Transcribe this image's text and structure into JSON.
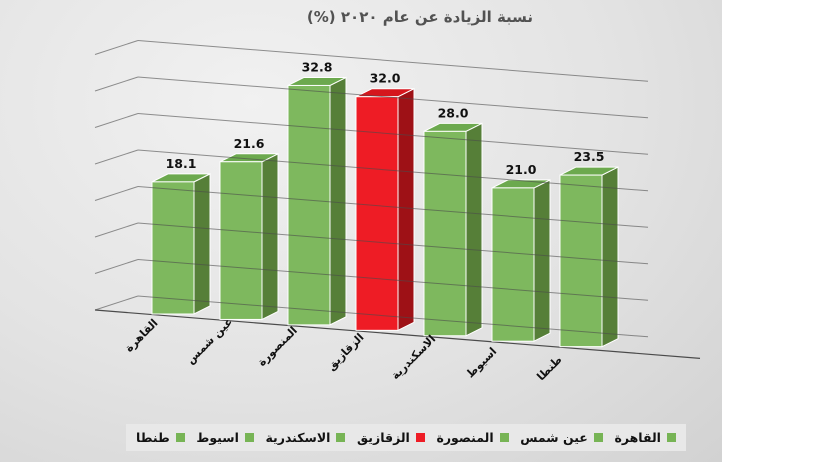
{
  "title": "نسبة الزيادة عن عام ٢٠٢٠ (%)",
  "chart_data": {
    "type": "bar",
    "projection": "3d-column",
    "title": "نسبة الزيادة عن عام ٢٠٢٠ (%)",
    "categories": [
      "القاهرة",
      "عين شمس",
      "المنصورة",
      "الزقازيق",
      "الاسكندرية",
      "اسيوط",
      "طنطا"
    ],
    "values": [
      18.1,
      21.6,
      32.8,
      32.0,
      28.0,
      21.0,
      23.5
    ],
    "data_labels": [
      "18.1",
      "21.6",
      "32.8",
      "32.0",
      "28.0",
      "21.0",
      "23.5"
    ],
    "bar_color_keys": [
      "green",
      "green",
      "green",
      "red",
      "green",
      "green",
      "green"
    ],
    "ylim": [
      0,
      35
    ],
    "gridline_step": 5,
    "grid": true,
    "legend_position": "bottom",
    "xlabel": "",
    "ylabel": ""
  },
  "colors": {
    "green": {
      "front": "#7eb85e",
      "side": "#567f38",
      "top": "#6ca94e"
    },
    "red": {
      "front": "#ee1c25",
      "side": "#9e1116",
      "top": "#d5161d"
    },
    "gridline": "#4b4b4b",
    "title_text": "#525252",
    "label_text": "#111111",
    "legend_green": "#77b455",
    "legend_red": "#ee1c25"
  },
  "legend": {
    "entries": [
      {
        "label": "طنطا",
        "color_key": "legend_green"
      },
      {
        "label": "اسيوط",
        "color_key": "legend_green"
      },
      {
        "label": "الاسكندرية",
        "color_key": "legend_green"
      },
      {
        "label": "الزقازيق",
        "color_key": "legend_red"
      },
      {
        "label": "المنصورة",
        "color_key": "legend_green"
      },
      {
        "label": "عين شمس",
        "color_key": "legend_green"
      },
      {
        "label": "القاهرة",
        "color_key": "legend_green"
      }
    ]
  }
}
